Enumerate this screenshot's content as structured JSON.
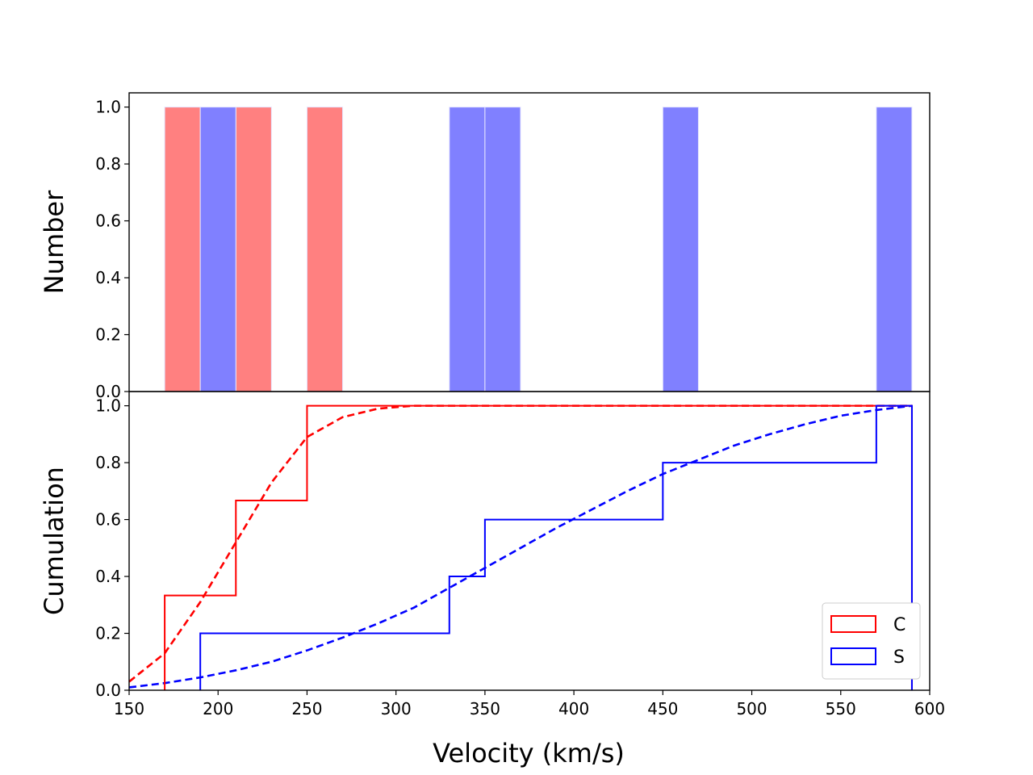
{
  "chart_data": [
    {
      "type": "bar",
      "panel": "top",
      "ylabel": "Number",
      "xlim": [
        150,
        600
      ],
      "ylim": [
        0,
        1.05
      ],
      "yticks": [
        "0.0",
        "0.2",
        "0.4",
        "0.6",
        "0.8",
        "1.0"
      ],
      "series": [
        {
          "name": "C",
          "color": "#ff8080",
          "bars": [
            {
              "x0": 170,
              "x1": 190,
              "value": 1.0
            },
            {
              "x0": 210,
              "x1": 230,
              "value": 1.0
            },
            {
              "x0": 250,
              "x1": 270,
              "value": 1.0
            }
          ]
        },
        {
          "name": "S",
          "color": "#8080ff",
          "bars": [
            {
              "x0": 190,
              "x1": 210,
              "value": 1.0
            },
            {
              "x0": 330,
              "x1": 350,
              "value": 1.0
            },
            {
              "x0": 350,
              "x1": 370,
              "value": 1.0
            },
            {
              "x0": 450,
              "x1": 470,
              "value": 1.0
            },
            {
              "x0": 570,
              "x1": 590,
              "value": 1.0
            }
          ]
        }
      ]
    },
    {
      "type": "line",
      "panel": "bottom",
      "ylabel": "Cumulation",
      "xlabel": "Velocity (km/s)",
      "xlim": [
        150,
        600
      ],
      "ylim": [
        0,
        1.05
      ],
      "xticks": [
        "150",
        "200",
        "250",
        "300",
        "350",
        "400",
        "450",
        "500",
        "550",
        "600"
      ],
      "yticks": [
        "0.0",
        "0.2",
        "0.4",
        "0.6",
        "0.8",
        "1.0"
      ],
      "legend_position": "bottom-right",
      "step_series": [
        {
          "name": "C",
          "color": "#ff0000",
          "x": [
            170,
            210,
            250,
            590
          ],
          "y": [
            0.333,
            0.667,
            1.0,
            1.0
          ]
        },
        {
          "name": "S",
          "color": "#0000ff",
          "x": [
            190,
            330,
            350,
            450,
            570,
            590
          ],
          "y": [
            0.2,
            0.4,
            0.6,
            0.8,
            1.0,
            1.0
          ]
        }
      ],
      "fit_series": [
        {
          "name": "C fit",
          "color": "#ff0000",
          "x": [
            150,
            170,
            190,
            210,
            230,
            250,
            270,
            290,
            310,
            350,
            400,
            450,
            500,
            550,
            590
          ],
          "y": [
            0.03,
            0.13,
            0.31,
            0.52,
            0.73,
            0.89,
            0.96,
            0.99,
            1.0,
            1.0,
            1.0,
            1.0,
            1.0,
            1.0,
            1.0
          ]
        },
        {
          "name": "S fit",
          "color": "#0000ff",
          "x": [
            150,
            170,
            190,
            210,
            230,
            250,
            270,
            290,
            310,
            330,
            350,
            370,
            390,
            410,
            430,
            450,
            470,
            490,
            510,
            530,
            550,
            570,
            590
          ],
          "y": [
            0.01,
            0.025,
            0.045,
            0.07,
            0.1,
            0.14,
            0.185,
            0.235,
            0.29,
            0.36,
            0.43,
            0.5,
            0.57,
            0.635,
            0.7,
            0.76,
            0.81,
            0.86,
            0.9,
            0.935,
            0.965,
            0.985,
            1.0
          ]
        }
      ],
      "legend": [
        {
          "label": "C",
          "color": "#ff0000"
        },
        {
          "label": "S",
          "color": "#0000ff"
        }
      ]
    }
  ]
}
